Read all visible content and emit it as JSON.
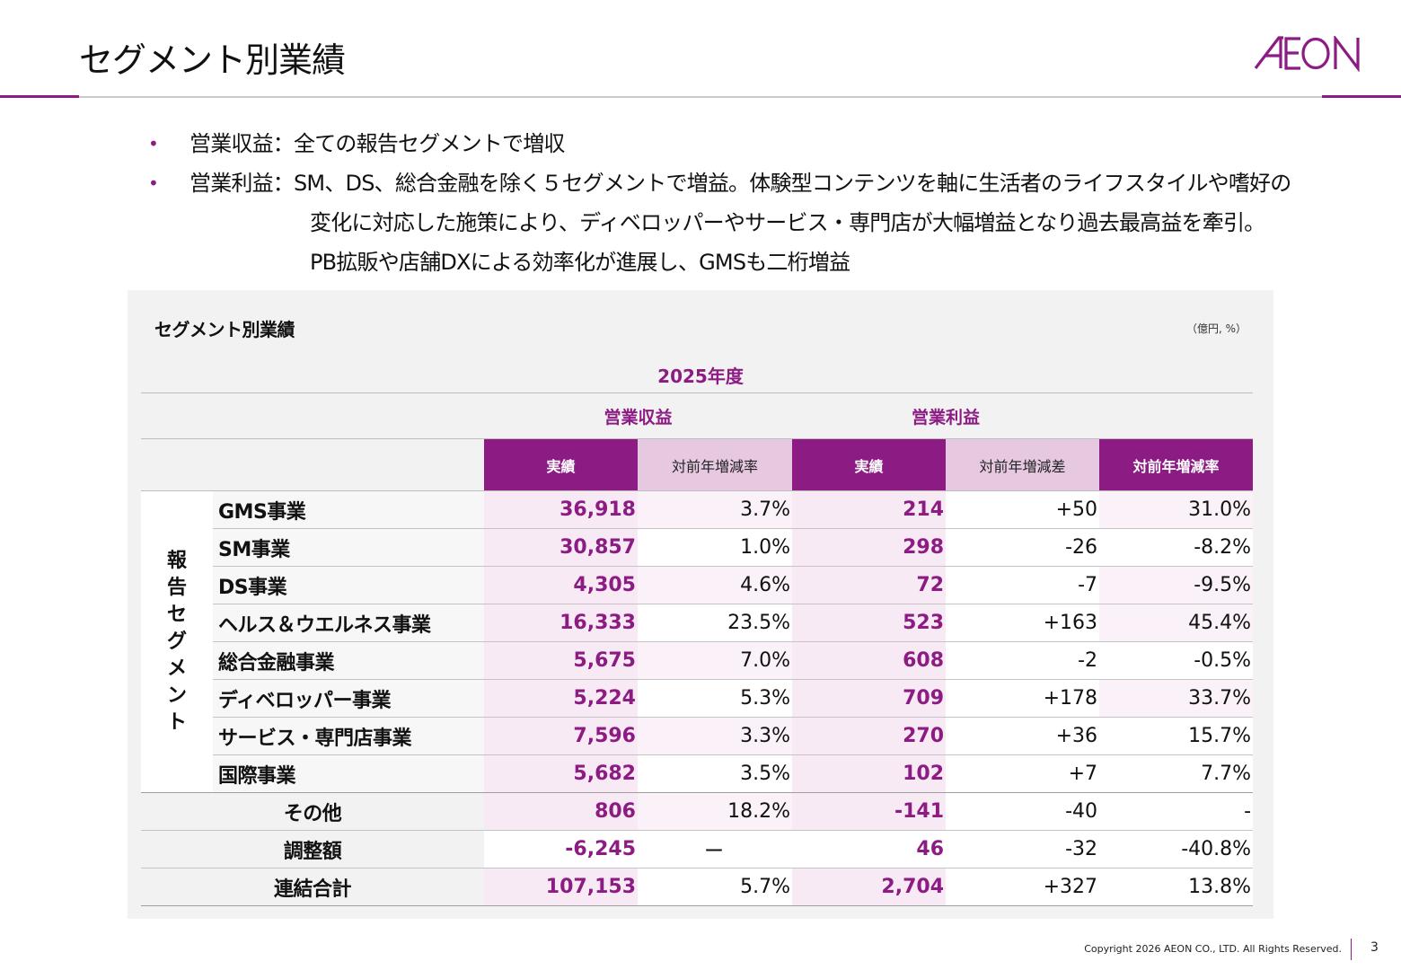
{
  "page": {
    "title": "セグメント別業績",
    "logo_text": "AEON",
    "page_number": "3",
    "copyright": "Copyright 2026 AEON CO., LTD. All Rights Reserved.",
    "accent_color": "#8c1c83"
  },
  "bullets": [
    {
      "label": "営業収益：",
      "lines": [
        "全ての報告セグメントで増収"
      ]
    },
    {
      "label": "営業利益：",
      "lines": [
        "SM、DS、総合金融を除く５セグメントで増益。体験型コンテンツを軸に生活者のライフスタイルや嗜好の",
        "変化に対応した施策により、ディベロッパーやサービス・専門店が大幅増益となり過去最高益を牽引。",
        "PB拡販や店舗DXによる効率化が進展し、GMSも二桁増益"
      ]
    }
  ],
  "table": {
    "title": "セグメント別業績",
    "unit": "（億円, %）",
    "year": "2025年度",
    "group_revenue": "営業収益",
    "group_profit": "営業利益",
    "sub_headers": [
      "実績",
      "対前年増減率",
      "実績",
      "対前年増減差",
      "対前年増減率"
    ],
    "segment_group_label": [
      "報",
      "告",
      "セ",
      "グ",
      "メ",
      "ン",
      "ト"
    ],
    "segments": [
      {
        "name": "GMS事業",
        "rev": "36,918",
        "rev_yoy": "3.7%",
        "op": "214",
        "op_diff": "+50",
        "op_yoy": "31.0%"
      },
      {
        "name": "SM事業",
        "rev": "30,857",
        "rev_yoy": "1.0%",
        "op": "298",
        "op_diff": "-26",
        "op_yoy": "-8.2%"
      },
      {
        "name": "DS事業",
        "rev": "4,305",
        "rev_yoy": "4.6%",
        "op": "72",
        "op_diff": "-7",
        "op_yoy": "-9.5%"
      },
      {
        "name": "ヘルス＆ウエルネス事業",
        "rev": "16,333",
        "rev_yoy": "23.5%",
        "op": "523",
        "op_diff": "+163",
        "op_yoy": "45.4%"
      },
      {
        "name": "総合金融事業",
        "rev": "5,675",
        "rev_yoy": "7.0%",
        "op": "608",
        "op_diff": "-2",
        "op_yoy": "-0.5%"
      },
      {
        "name": "ディベロッパー事業",
        "rev": "5,224",
        "rev_yoy": "5.3%",
        "op": "709",
        "op_diff": "+178",
        "op_yoy": "33.7%"
      },
      {
        "name": "サービス・専門店事業",
        "rev": "7,596",
        "rev_yoy": "3.3%",
        "op": "270",
        "op_diff": "+36",
        "op_yoy": "15.7%"
      },
      {
        "name": "国際事業",
        "rev": "5,682",
        "rev_yoy": "3.5%",
        "op": "102",
        "op_diff": "+7",
        "op_yoy": "7.7%"
      }
    ],
    "others": [
      {
        "name": "その他",
        "rev": "806",
        "rev_yoy": "18.2%",
        "op": "-141",
        "op_diff": "-40",
        "op_yoy": "-"
      },
      {
        "name": "調整額",
        "rev": "-6,245",
        "rev_yoy": "ー",
        "op": "46",
        "op_diff": "-32",
        "op_yoy": "-40.8%"
      },
      {
        "name": "連結合計",
        "rev": "107,153",
        "rev_yoy": "5.7%",
        "op": "2,704",
        "op_diff": "+327",
        "op_yoy": "13.8%"
      }
    ]
  }
}
